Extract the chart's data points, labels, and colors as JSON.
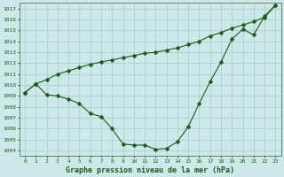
{
  "title": "Graphe pression niveau de la mer (hPa)",
  "xlabel_ticks": [
    0,
    1,
    2,
    3,
    4,
    5,
    6,
    7,
    8,
    9,
    10,
    11,
    12,
    13,
    14,
    15,
    16,
    17,
    18,
    19,
    20,
    21,
    22,
    23
  ],
  "ylim": [
    1003.5,
    1017.5
  ],
  "xlim": [
    -0.5,
    23.5
  ],
  "yticks": [
    1004,
    1005,
    1006,
    1007,
    1008,
    1009,
    1010,
    1011,
    1012,
    1013,
    1014,
    1015,
    1016,
    1017
  ],
  "bg_color": "#cce8e8",
  "grid_color": "#aad0d0",
  "line_color": "#1a5c1a",
  "line1": [
    1009.3,
    1010.1,
    1009.1,
    1009.0,
    1008.7,
    1008.3,
    1007.4,
    1007.1,
    1006.0,
    1004.6,
    1004.5,
    1004.5,
    1004.1,
    1004.2,
    1004.8,
    1006.2,
    1008.3,
    1010.3,
    1012.1,
    1014.2,
    1015.1,
    1014.6,
    1016.3,
    1017.3
  ],
  "line2": [
    1009.3,
    1010.1,
    1010.5,
    1011.0,
    1011.3,
    1011.6,
    1011.9,
    1012.1,
    1012.3,
    1012.5,
    1012.7,
    1012.9,
    1013.0,
    1013.2,
    1013.4,
    1013.7,
    1014.0,
    1014.5,
    1014.8,
    1015.2,
    1015.5,
    1015.8,
    1016.2,
    1017.3
  ],
  "marker": "D",
  "markersize": 2.5,
  "linewidth": 0.8,
  "tick_fontsize": 4.5,
  "xlabel_fontsize": 6,
  "spine_color": "#557755"
}
